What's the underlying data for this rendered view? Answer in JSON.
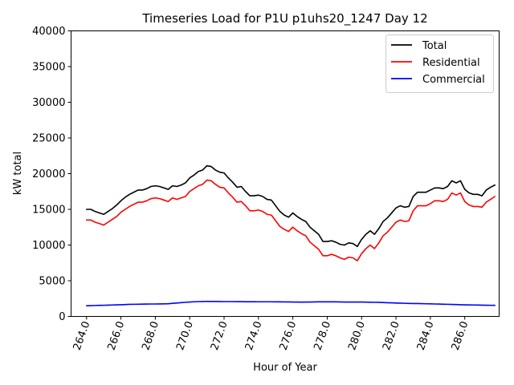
{
  "chart_data": {
    "type": "line",
    "title": "Timeseries Load for P1U p1uhs20_1247  Day 12",
    "xlabel": "Hour of Year",
    "ylabel": "kW total",
    "xlim": [
      263.1,
      288.0
    ],
    "ylim": [
      0,
      40000
    ],
    "x_ticks": [
      264.0,
      266.0,
      268.0,
      270.0,
      272.0,
      274.0,
      276.0,
      278.0,
      280.0,
      282.0,
      284.0,
      286.0
    ],
    "x_tick_labels": [
      "264.0",
      "266.0",
      "268.0",
      "270.0",
      "272.0",
      "274.0",
      "276.0",
      "278.0",
      "280.0",
      "282.0",
      "284.0",
      "286.0"
    ],
    "y_ticks": [
      0,
      5000,
      10000,
      15000,
      20000,
      25000,
      30000,
      35000,
      40000
    ],
    "y_tick_labels": [
      "0",
      "5000",
      "10000",
      "15000",
      "20000",
      "25000",
      "30000",
      "35000",
      "40000"
    ],
    "legend_position": "top-right",
    "x": [
      264.0,
      264.25,
      264.5,
      264.75,
      265.0,
      265.25,
      265.5,
      265.75,
      266.0,
      266.25,
      266.5,
      266.75,
      267.0,
      267.25,
      267.5,
      267.75,
      268.0,
      268.25,
      268.5,
      268.75,
      269.0,
      269.25,
      269.5,
      269.75,
      270.0,
      270.25,
      270.5,
      270.75,
      271.0,
      271.25,
      271.5,
      271.75,
      272.0,
      272.25,
      272.5,
      272.75,
      273.0,
      273.25,
      273.5,
      273.75,
      274.0,
      274.25,
      274.5,
      274.75,
      275.0,
      275.25,
      275.5,
      275.75,
      276.0,
      276.25,
      276.5,
      276.75,
      277.0,
      277.25,
      277.5,
      277.75,
      278.0,
      278.25,
      278.5,
      278.75,
      279.0,
      279.25,
      279.5,
      279.75,
      280.0,
      280.25,
      280.5,
      280.75,
      281.0,
      281.25,
      281.5,
      281.75,
      282.0,
      282.25,
      282.5,
      282.75,
      283.0,
      283.25,
      283.5,
      283.75,
      284.0,
      284.25,
      284.5,
      284.75,
      285.0,
      285.25,
      285.5,
      285.75,
      286.0,
      286.25,
      286.5,
      286.75,
      287.0,
      287.25,
      287.5,
      287.75
    ],
    "series": [
      {
        "name": "Total",
        "color": "#000000",
        "values": [
          15000,
          15000,
          14700,
          14500,
          14300,
          14700,
          15100,
          15600,
          16200,
          16700,
          17100,
          17400,
          17700,
          17700,
          17900,
          18200,
          18300,
          18200,
          18000,
          17800,
          18300,
          18200,
          18400,
          18700,
          19400,
          19800,
          20300,
          20500,
          21100,
          21000,
          20500,
          20200,
          20100,
          19400,
          18800,
          18100,
          18200,
          17500,
          16900,
          16900,
          17000,
          16800,
          16400,
          16300,
          15500,
          14700,
          14200,
          13900,
          14500,
          14000,
          13600,
          13300,
          12500,
          12000,
          11500,
          10500,
          10500,
          10600,
          10400,
          10100,
          10000,
          10300,
          10200,
          9800,
          10800,
          11500,
          12000,
          11500,
          12300,
          13300,
          13800,
          14500,
          15200,
          15500,
          15300,
          15400,
          16800,
          17400,
          17400,
          17400,
          17700,
          18000,
          18000,
          17900,
          18200,
          19000,
          18700,
          19000,
          17800,
          17300,
          17100,
          17100,
          16900,
          17700,
          18100,
          18400
        ]
      },
      {
        "name": "Residential",
        "color": "#ff0000",
        "values": [
          13500,
          13500,
          13200,
          13000,
          12800,
          13200,
          13600,
          14000,
          14600,
          15000,
          15400,
          15700,
          16000,
          16000,
          16200,
          16500,
          16600,
          16500,
          16300,
          16100,
          16600,
          16400,
          16600,
          16800,
          17500,
          17900,
          18300,
          18500,
          19100,
          19000,
          18500,
          18100,
          18000,
          17300,
          16700,
          16000,
          16100,
          15500,
          14800,
          14800,
          14900,
          14700,
          14300,
          14200,
          13400,
          12600,
          12200,
          11900,
          12500,
          12000,
          11600,
          11300,
          10400,
          9900,
          9400,
          8500,
          8500,
          8700,
          8500,
          8200,
          8000,
          8300,
          8200,
          7800,
          8800,
          9500,
          10000,
          9500,
          10300,
          11300,
          11800,
          12500,
          13200,
          13500,
          13300,
          13400,
          14800,
          15500,
          15500,
          15500,
          15800,
          16200,
          16200,
          16100,
          16400,
          17300,
          17000,
          17300,
          16100,
          15600,
          15400,
          15400,
          15300,
          16000,
          16400,
          16800
        ]
      },
      {
        "name": "Commercial",
        "color": "#0000ff",
        "values": [
          1500,
          1510,
          1530,
          1550,
          1560,
          1580,
          1600,
          1620,
          1640,
          1660,
          1690,
          1700,
          1710,
          1720,
          1730,
          1740,
          1740,
          1750,
          1760,
          1780,
          1830,
          1880,
          1930,
          1980,
          2020,
          2050,
          2080,
          2090,
          2100,
          2100,
          2100,
          2090,
          2080,
          2080,
          2080,
          2070,
          2070,
          2060,
          2060,
          2060,
          2050,
          2050,
          2050,
          2050,
          2040,
          2040,
          2030,
          2030,
          2020,
          2010,
          2000,
          2010,
          2020,
          2030,
          2040,
          2040,
          2040,
          2040,
          2040,
          2030,
          2020,
          2020,
          2020,
          2020,
          2020,
          2000,
          1990,
          1980,
          1970,
          1950,
          1920,
          1900,
          1880,
          1860,
          1840,
          1820,
          1810,
          1800,
          1790,
          1770,
          1760,
          1740,
          1730,
          1710,
          1700,
          1680,
          1660,
          1640,
          1620,
          1610,
          1600,
          1590,
          1580,
          1570,
          1560,
          1550
        ]
      }
    ]
  }
}
